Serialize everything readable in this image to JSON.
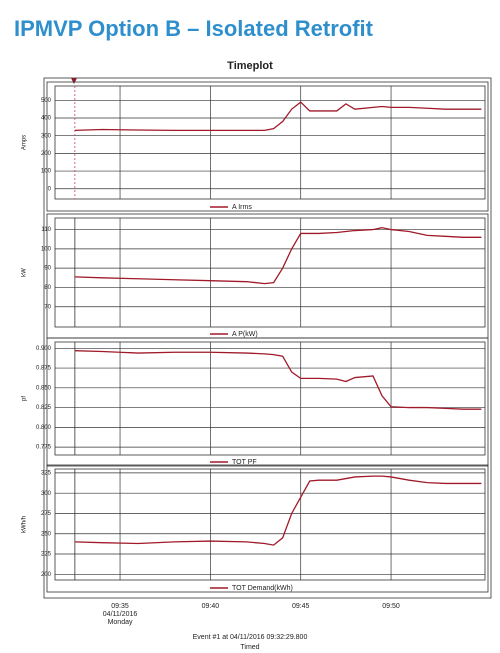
{
  "heading": "IPMVP Option B – Isolated Retrofit",
  "plot_title": "Timeplot",
  "x_axis": {
    "xlim": [
      31.4,
      55.2
    ],
    "xticks": [
      {
        "value": 35,
        "label": "09:35"
      },
      {
        "value": 40,
        "label": "09:40"
      },
      {
        "value": 45,
        "label": "09:45"
      },
      {
        "value": 50,
        "label": "09:50"
      }
    ],
    "date": "04/11/2016",
    "day": "Monday"
  },
  "event": "Event #1 at 04/11/2016 09:32:29.800",
  "x_label": "Timed",
  "chart_data": [
    {
      "type": "line",
      "y_label": "Amps",
      "ylim": [
        -58,
        581
      ],
      "yticks": [
        0,
        100,
        200,
        300,
        400,
        500
      ],
      "grid": true,
      "x": [
        32.5,
        34,
        36,
        38,
        40,
        42,
        43,
        43.5,
        44,
        44.5,
        45,
        45.5,
        46,
        47,
        47.5,
        48,
        49,
        49.5,
        50,
        51,
        52,
        53,
        54,
        55
      ],
      "series": [
        {
          "name": "A Irms",
          "color": "#a01a2a",
          "values": [
            330,
            335,
            332,
            330,
            330,
            330,
            330,
            340,
            380,
            450,
            490,
            440,
            440,
            440,
            480,
            450,
            460,
            465,
            460,
            460,
            455,
            450,
            450,
            450
          ]
        }
      ]
    },
    {
      "type": "line",
      "y_label": "kW",
      "ylim": [
        59.5,
        116
      ],
      "yticks": [
        70,
        80,
        90,
        100,
        110
      ],
      "grid": true,
      "x": [
        32.5,
        34,
        36,
        38,
        40,
        42,
        43,
        43.5,
        44,
        44.5,
        45,
        45.5,
        46,
        47,
        47.5,
        48,
        49,
        49.5,
        50,
        51,
        52,
        53,
        54,
        55
      ],
      "series": [
        {
          "name": "A P(kW)",
          "color": "#a01a2a",
          "values": [
            85.5,
            85,
            84.5,
            84,
            83.5,
            83,
            82,
            82.5,
            90,
            100,
            108,
            108,
            108,
            108.5,
            109,
            109.5,
            110,
            111,
            110,
            109,
            107,
            106.5,
            106,
            106
          ]
        }
      ]
    },
    {
      "type": "line",
      "y_label": "pf",
      "ylim": [
        0.765,
        0.908
      ],
      "yticks": [
        0.775,
        {
          "value": 0.8,
          "label": "0.800"
        },
        0.825,
        {
          "value": 0.85,
          "label": "0.850"
        },
        0.875,
        {
          "value": 0.9,
          "label": "0.900"
        }
      ],
      "grid": true,
      "x": [
        32.5,
        34,
        36,
        38,
        40,
        42,
        43,
        43.5,
        44,
        44.5,
        45,
        45.5,
        46,
        47,
        47.5,
        48,
        49,
        49.5,
        50,
        51,
        52,
        53,
        54,
        55
      ],
      "series": [
        {
          "name": "TOT PF",
          "color": "#a01a2a",
          "values": [
            0.897,
            0.896,
            0.894,
            0.895,
            0.895,
            0.894,
            0.893,
            0.892,
            0.89,
            0.87,
            0.862,
            0.862,
            0.862,
            0.861,
            0.858,
            0.863,
            0.865,
            0.84,
            0.826,
            0.825,
            0.825,
            0.824,
            0.823,
            0.823
          ]
        }
      ]
    },
    {
      "type": "line",
      "y_label": "kWh/h",
      "ylim": [
        193,
        329.8
      ],
      "yticks": [
        200,
        225,
        250,
        275,
        300,
        325
      ],
      "grid": true,
      "x": [
        32.5,
        34,
        36,
        38,
        40,
        42,
        43,
        43.5,
        44,
        44.5,
        45,
        45.5,
        46,
        47,
        47.5,
        48,
        49,
        49.5,
        50,
        51,
        52,
        53,
        54,
        55
      ],
      "series": [
        {
          "name": "TOT Demand(kWh)",
          "color": "#a01a2a",
          "values": [
            240,
            239,
            238,
            240,
            241,
            240,
            238,
            236,
            245,
            275,
            295,
            315,
            316,
            316,
            318,
            320,
            321,
            321,
            320,
            316,
            313,
            312,
            312,
            312
          ]
        }
      ]
    }
  ]
}
